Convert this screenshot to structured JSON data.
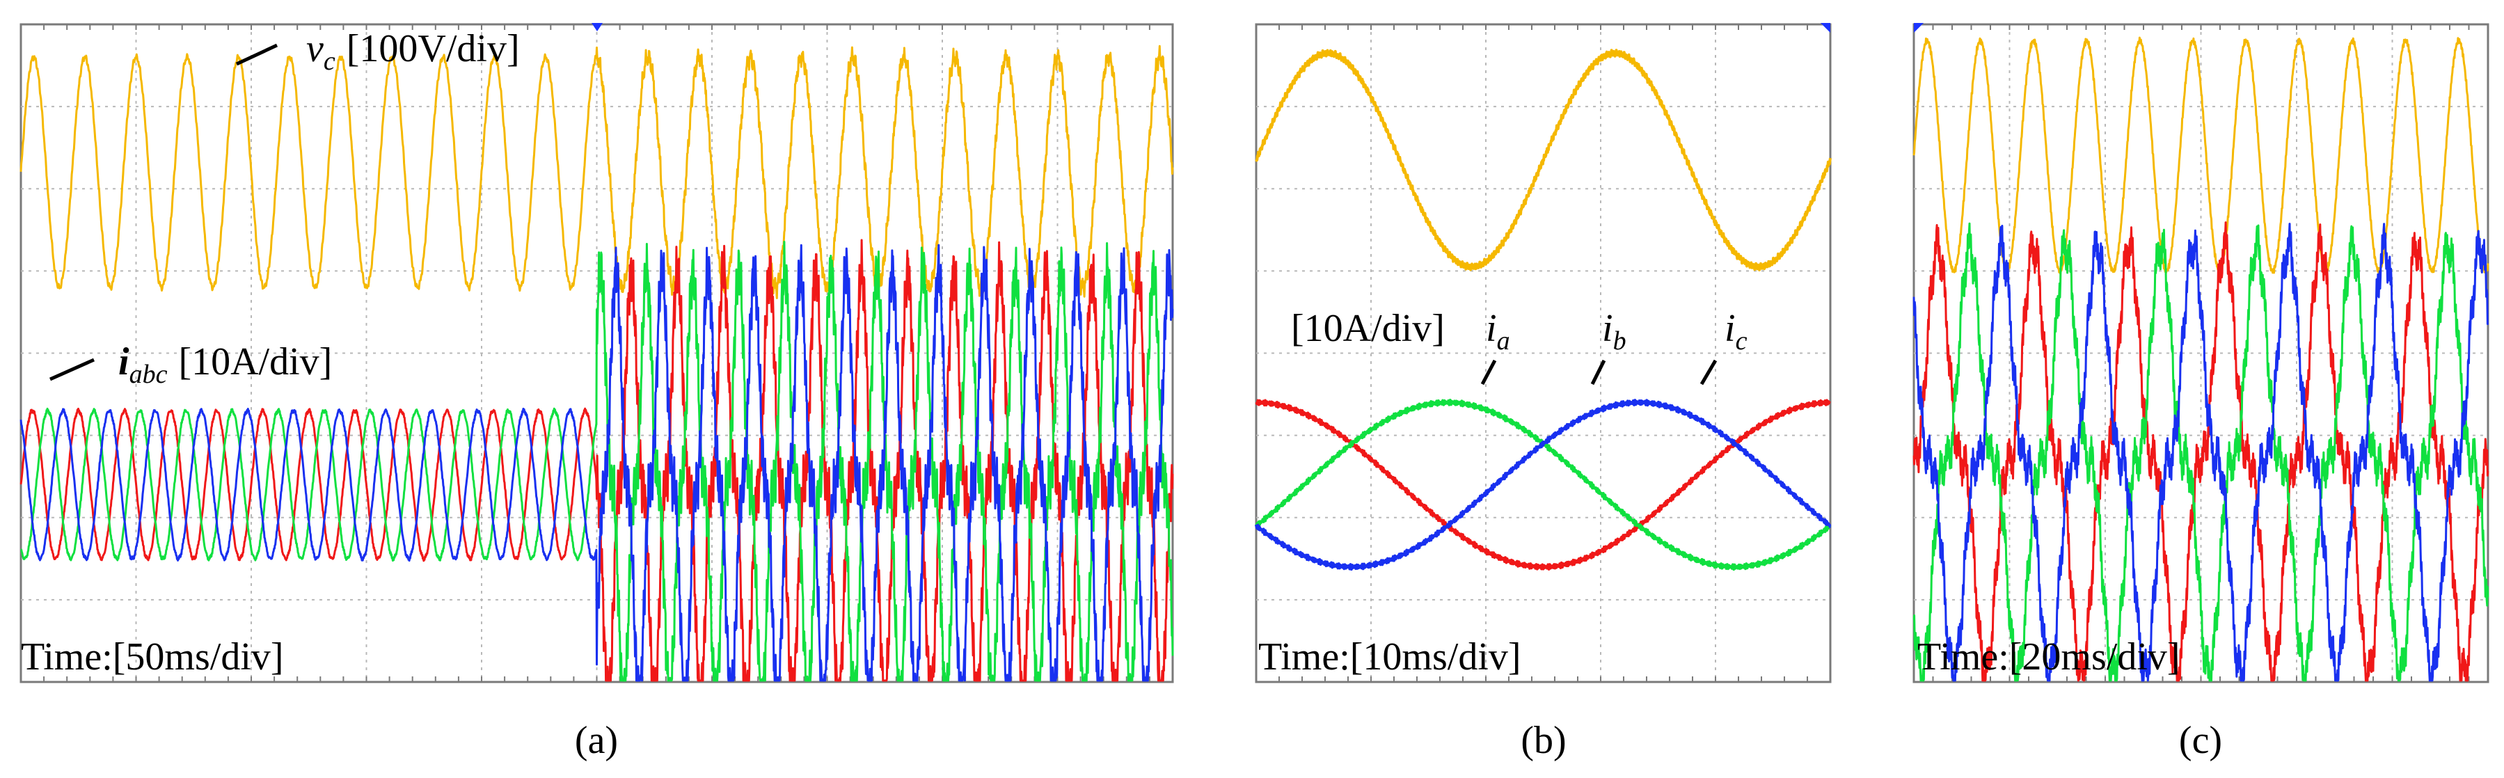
{
  "colors": {
    "voltage": "#f5b800",
    "phase_a": "#f01818",
    "phase_b": "#10e040",
    "phase_c": "#1830f0",
    "grid": "#b8b8b8",
    "frame": "#7a7a7a",
    "marker": "#1a33ff"
  },
  "chart_data": [
    {
      "id": "a",
      "type": "line",
      "caption": "(a)",
      "time_label": "Time:[50ms/div]",
      "time_per_div_ms": 50,
      "x_divisions": 10,
      "y_divisions": 8,
      "xlim_ms": [
        0,
        500
      ],
      "annotations": {
        "voltage_symbol": "v",
        "voltage_subscript": "c",
        "voltage_scale": "[100V/div]",
        "current_symbol": "i",
        "current_subscript": "abc",
        "current_scale": "[10A/div]"
      },
      "series": [
        {
          "name": "v_c",
          "unit": "V",
          "color_key": "voltage",
          "frequency_hz": 45,
          "amplitude_div": 1.4,
          "offset_div": 2.2,
          "event_ms": 250
        },
        {
          "name": "i_a",
          "unit": "A",
          "color_key": "phase_a",
          "frequency_hz": 50,
          "phase_deg": 0,
          "amplitude_div_before": 0.9,
          "amplitude_div_after": 2.6,
          "offset_div": -1.6,
          "event_ms": 250
        },
        {
          "name": "i_b",
          "unit": "A",
          "color_key": "phase_b",
          "frequency_hz": 50,
          "phase_deg": -120,
          "amplitude_div_before": 0.9,
          "amplitude_div_after": 2.6,
          "offset_div": -1.6,
          "event_ms": 250
        },
        {
          "name": "i_c",
          "unit": "A",
          "color_key": "phase_c",
          "frequency_hz": 50,
          "phase_deg": 120,
          "amplitude_div_before": 0.9,
          "amplitude_div_after": 2.6,
          "offset_div": -1.6,
          "event_ms": 250
        }
      ]
    },
    {
      "id": "b",
      "type": "line",
      "caption": "(b)",
      "time_label": "Time:[10ms/div]",
      "time_per_div_ms": 10,
      "x_divisions": 5,
      "y_divisions": 8,
      "xlim_ms": [
        0,
        50
      ],
      "annotations": {
        "current_scale": "[10A/div]",
        "label_a_symbol": "i",
        "label_a_subscript": "a",
        "label_b_symbol": "i",
        "label_b_subscript": "b",
        "label_c_symbol": "i",
        "label_c_subscript": "c"
      },
      "series": [
        {
          "name": "v_c",
          "unit": "V",
          "color_key": "voltage",
          "frequency_hz": 40,
          "amplitude_div": 1.3,
          "offset_div": 2.35
        },
        {
          "name": "i_a",
          "unit": "A",
          "color_key": "phase_a",
          "frequency_hz": 20,
          "phase_deg": 90,
          "amplitude_div": 1.0,
          "offset_div": -1.6
        },
        {
          "name": "i_b",
          "unit": "A",
          "color_key": "phase_b",
          "frequency_hz": 20,
          "phase_deg": -30,
          "amplitude_div": 1.0,
          "offset_div": -1.6
        },
        {
          "name": "i_c",
          "unit": "A",
          "color_key": "phase_c",
          "frequency_hz": 20,
          "phase_deg": 210,
          "amplitude_div": 1.0,
          "offset_div": -1.6
        }
      ]
    },
    {
      "id": "c",
      "type": "line",
      "caption": "(c)",
      "time_label": "Time:[20ms/div]",
      "time_per_div_ms": 20,
      "x_divisions": 6,
      "y_divisions": 8,
      "xlim_ms": [
        0,
        120
      ],
      "annotations": {},
      "series": [
        {
          "name": "v_c",
          "unit": "V",
          "color_key": "voltage",
          "frequency_hz": 90,
          "amplitude_div": 1.4,
          "offset_div": 2.4
        },
        {
          "name": "i_a",
          "unit": "A",
          "color_key": "phase_a",
          "frequency_hz": 50,
          "phase_deg": 0,
          "amplitude_div": 2.6,
          "offset_div": -1.3
        },
        {
          "name": "i_b",
          "unit": "A",
          "color_key": "phase_b",
          "frequency_hz": 50,
          "phase_deg": -120,
          "amplitude_div": 2.6,
          "offset_div": -1.3
        },
        {
          "name": "i_c",
          "unit": "A",
          "color_key": "phase_c",
          "frequency_hz": 50,
          "phase_deg": 120,
          "amplitude_div": 2.6,
          "offset_div": -1.3
        }
      ]
    }
  ]
}
